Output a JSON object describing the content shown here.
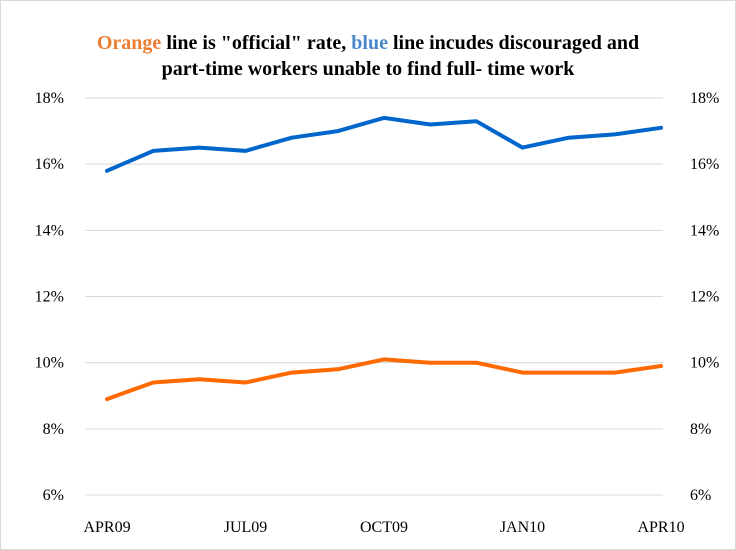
{
  "title": {
    "part1": "Orange",
    "part2": " line is \"official\" rate, ",
    "part3": "blue",
    "part4": " line incudes discouraged and",
    "line2": "part-time workers unable to find full- time work"
  },
  "colors": {
    "orange": "#ed7d31",
    "blue": "#4a86c8",
    "series_orange": "#ff6a00",
    "series_blue": "#0066cc",
    "grid": "#d9d9d9"
  },
  "chart_data": {
    "type": "line",
    "x": [
      "APR09",
      "MAY09",
      "JUN09",
      "JUL09",
      "AUG09",
      "SEP09",
      "OCT09",
      "NOV09",
      "DEC09",
      "JAN10",
      "FEB10",
      "MAR10",
      "APR10"
    ],
    "x_tick_labels": [
      "APR09",
      "JUL09",
      "OCT09",
      "JAN10",
      "APR10"
    ],
    "y_tick_labels": [
      "6%",
      "8%",
      "10%",
      "12%",
      "14%",
      "16%",
      "18%"
    ],
    "ylim": [
      6,
      18
    ],
    "y_unit": "%",
    "secondary_y_axis": true,
    "grid": true,
    "series": [
      {
        "color": "#0066cc",
        "values": [
          15.8,
          16.4,
          16.5,
          16.4,
          16.8,
          17.0,
          17.4,
          17.2,
          17.3,
          16.5,
          16.8,
          16.9,
          17.1
        ]
      },
      {
        "color": "#ff6a00",
        "values": [
          8.9,
          9.4,
          9.5,
          9.4,
          9.7,
          9.8,
          10.1,
          10.0,
          10.0,
          9.7,
          9.7,
          9.7,
          9.9
        ]
      }
    ]
  }
}
